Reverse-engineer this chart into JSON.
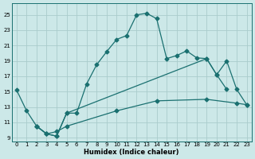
{
  "xlabel": "Humidex (Indice chaleur)",
  "bg_color": "#cce8e8",
  "grid_color": "#aacccc",
  "line_color": "#1a7070",
  "xlim": [
    -0.5,
    23.5
  ],
  "ylim": [
    8.5,
    26.5
  ],
  "xticks": [
    0,
    1,
    2,
    3,
    4,
    5,
    6,
    7,
    8,
    9,
    10,
    11,
    12,
    13,
    14,
    15,
    16,
    17,
    18,
    19,
    20,
    21,
    22,
    23
  ],
  "yticks": [
    9,
    11,
    13,
    15,
    17,
    19,
    21,
    23,
    25
  ],
  "line_main_x": [
    0,
    1,
    2,
    3,
    4,
    5,
    6,
    7,
    8,
    9,
    10,
    11,
    12,
    13,
    14,
    15,
    16,
    17,
    18,
    19,
    20,
    21
  ],
  "line_main_y": [
    15.2,
    12.5,
    10.5,
    9.5,
    9.2,
    12.2,
    12.2,
    16.0,
    18.5,
    20.2,
    21.8,
    22.3,
    25.0,
    25.2,
    24.5,
    19.3,
    19.7,
    20.3,
    19.4,
    19.3,
    17.2,
    15.3
  ],
  "line_mid_x": [
    2,
    3,
    4,
    5,
    19,
    20,
    21,
    22,
    23
  ],
  "line_mid_y": [
    10.5,
    9.5,
    9.2,
    12.2,
    19.3,
    17.2,
    19.0,
    15.3,
    13.3
  ],
  "line_bot_x": [
    2,
    3,
    4,
    5,
    10,
    14,
    19,
    22,
    23
  ],
  "line_bot_y": [
    10.5,
    9.5,
    9.8,
    10.5,
    12.5,
    13.8,
    14.0,
    13.5,
    13.3
  ]
}
